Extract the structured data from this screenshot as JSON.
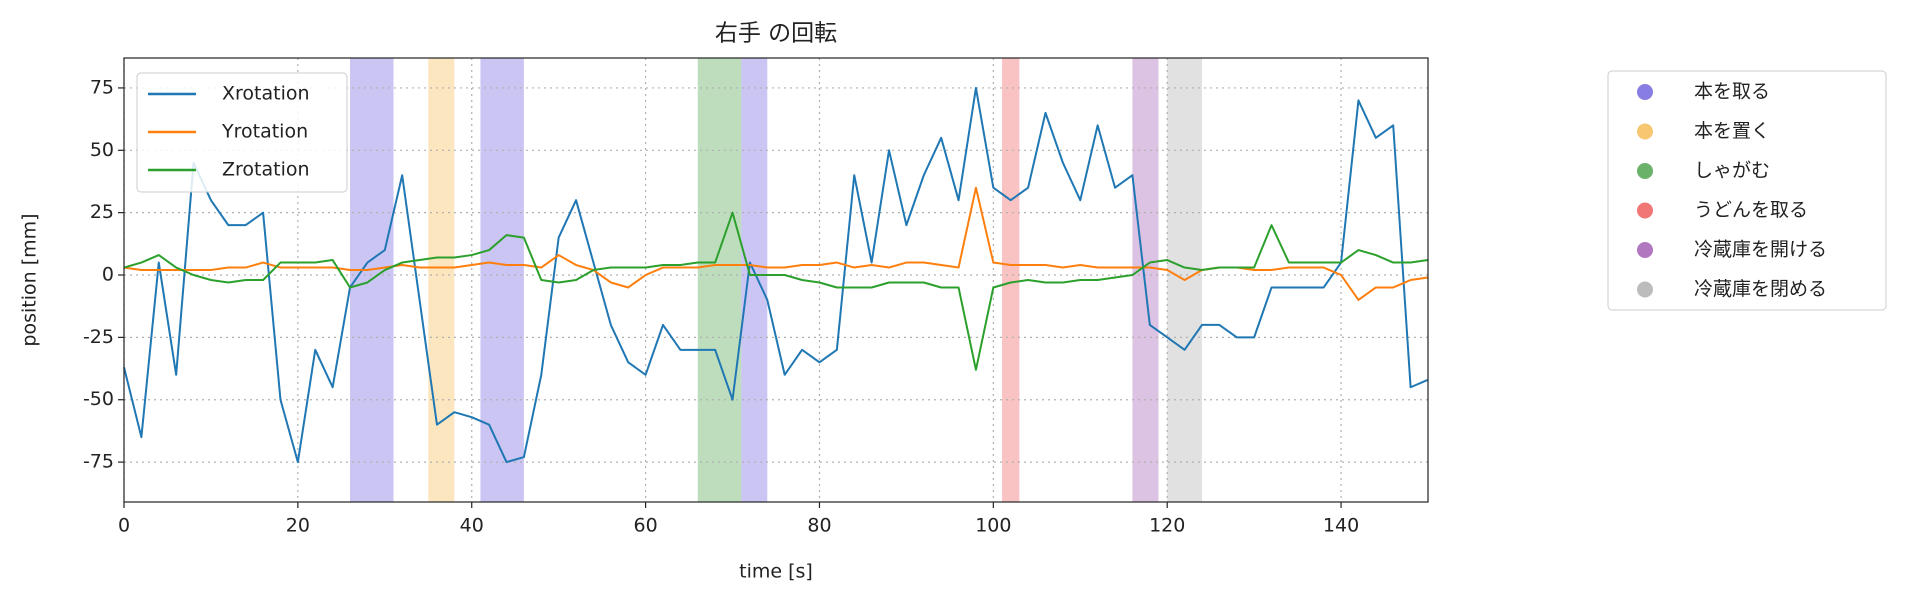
{
  "chart_data": {
    "type": "line",
    "title": "右手 の回転",
    "x_label": "time [s]",
    "y_label": "position [mm]",
    "x": [
      0,
      2,
      4,
      6,
      8,
      10,
      12,
      14,
      16,
      18,
      20,
      22,
      24,
      26,
      28,
      30,
      32,
      34,
      36,
      38,
      40,
      42,
      44,
      46,
      48,
      50,
      52,
      54,
      56,
      58,
      60,
      62,
      64,
      66,
      68,
      70,
      72,
      74,
      76,
      78,
      80,
      82,
      84,
      86,
      88,
      90,
      92,
      94,
      96,
      98,
      100,
      102,
      104,
      106,
      108,
      110,
      112,
      114,
      116,
      118,
      120,
      122,
      124,
      126,
      128,
      130,
      132,
      134,
      136,
      138,
      140,
      142,
      144,
      146,
      148,
      150
    ],
    "series": [
      {
        "name": "Xrotation",
        "color": "#1f77b4",
        "values": [
          -37,
          -65,
          5,
          -40,
          45,
          30,
          20,
          20,
          25,
          -50,
          -75,
          -30,
          -45,
          -5,
          5,
          10,
          40,
          -10,
          -60,
          -55,
          -57,
          -60,
          -75,
          -73,
          -40,
          15,
          30,
          5,
          -20,
          -35,
          -40,
          -20,
          -30,
          -30,
          -30,
          -50,
          5,
          -10,
          -40,
          -30,
          -35,
          -30,
          40,
          5,
          50,
          20,
          40,
          55,
          30,
          75,
          35,
          30,
          35,
          65,
          45,
          30,
          60,
          35,
          40,
          -20,
          -25,
          -30,
          -20,
          -20,
          -25,
          -25,
          -5,
          -5,
          -5,
          -5,
          5,
          70,
          55,
          60,
          -45,
          -42
        ]
      },
      {
        "name": "Yrotation",
        "color": "#ff7f0e",
        "values": [
          3,
          2,
          2,
          2,
          2,
          2,
          3,
          3,
          5,
          3,
          3,
          3,
          3,
          2,
          2,
          3,
          4,
          3,
          3,
          3,
          4,
          5,
          4,
          4,
          3,
          8,
          4,
          2,
          -3,
          -5,
          0,
          3,
          3,
          3,
          4,
          4,
          4,
          3,
          3,
          4,
          4,
          5,
          3,
          4,
          3,
          5,
          5,
          4,
          3,
          35,
          5,
          4,
          4,
          4,
          3,
          4,
          3,
          3,
          3,
          3,
          2,
          -2,
          2,
          3,
          3,
          2,
          2,
          3,
          3,
          3,
          0,
          -10,
          -5,
          -5,
          -2,
          -1
        ]
      },
      {
        "name": "Zrotation",
        "color": "#2ca02c",
        "values": [
          3,
          5,
          8,
          3,
          0,
          -2,
          -3,
          -2,
          -2,
          5,
          5,
          5,
          6,
          -5,
          -3,
          2,
          5,
          6,
          7,
          7,
          8,
          10,
          16,
          15,
          -2,
          -3,
          -2,
          2,
          3,
          3,
          3,
          4,
          4,
          5,
          5,
          25,
          0,
          0,
          0,
          -2,
          -3,
          -5,
          -5,
          -5,
          -3,
          -3,
          -3,
          -5,
          -5,
          -38,
          -5,
          -3,
          -2,
          -3,
          -3,
          -2,
          -2,
          -1,
          0,
          5,
          6,
          3,
          2,
          3,
          3,
          3,
          20,
          5,
          5,
          5,
          5,
          10,
          8,
          5,
          5,
          6
        ]
      }
    ],
    "activities": [
      {
        "name": "本を取る",
        "color": "#7b6fe0",
        "intervals": [
          [
            26,
            31
          ],
          [
            41,
            46
          ],
          [
            71,
            74
          ]
        ]
      },
      {
        "name": "本を置く",
        "color": "#f5c060",
        "intervals": [
          [
            35,
            38
          ]
        ]
      },
      {
        "name": "しゃがむ",
        "color": "#5aaa5a",
        "intervals": [
          [
            66,
            71
          ]
        ]
      },
      {
        "name": "うどんを取る",
        "color": "#f06868",
        "intervals": [
          [
            101,
            103
          ]
        ]
      },
      {
        "name": "冷蔵庫を開ける",
        "color": "#a868b8",
        "intervals": [
          [
            116,
            119
          ]
        ]
      },
      {
        "name": "冷蔵庫を閉める",
        "color": "#b5b5b5",
        "intervals": [
          [
            120,
            124
          ]
        ]
      }
    ],
    "xlim": [
      0,
      150
    ],
    "ylim": [
      -91,
      87
    ],
    "xticks": [
      0,
      20,
      40,
      60,
      80,
      100,
      120,
      140
    ],
    "yticks": [
      -75,
      -50,
      -25,
      0,
      25,
      50,
      75
    ],
    "grid": true,
    "legend": "upper left"
  }
}
